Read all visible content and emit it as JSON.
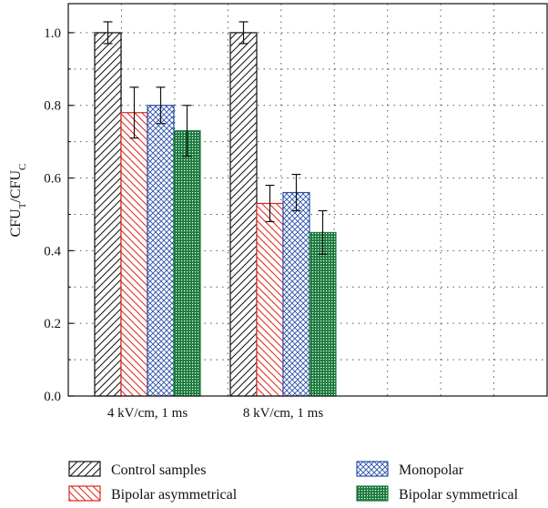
{
  "chart_data": {
    "type": "bar",
    "ylabel": "CFU_T/CFU_C",
    "ylabel_parts": {
      "main": "CFU",
      "sub1": "T",
      "sep": "/CFU",
      "sub2": "C"
    },
    "categories": [
      "4 kV/cm, 1 ms",
      "8 kV/cm, 1 ms"
    ],
    "ylim": [
      0,
      1.08
    ],
    "yticks": [
      "0.0",
      "0.2",
      "0.4",
      "0.6",
      "0.8",
      "1.0"
    ],
    "grid": true,
    "legend_position": "bottom",
    "series": [
      {
        "name": "Control samples",
        "values": [
          1.0,
          1.0
        ],
        "errors": [
          0.03,
          0.03
        ],
        "color": "#111111",
        "pattern": "diagonal-up"
      },
      {
        "name": "Bipolar asymmetrical",
        "values": [
          0.78,
          0.53
        ],
        "errors": [
          0.07,
          0.05
        ],
        "color": "#e2231a",
        "pattern": "diagonal-down"
      },
      {
        "name": "Monopolar",
        "values": [
          0.8,
          0.56
        ],
        "errors": [
          0.05,
          0.05
        ],
        "color": "#2b4fa8",
        "pattern": "crosshatch"
      },
      {
        "name": "Bipolar symmetrical",
        "values": [
          0.73,
          0.45
        ],
        "errors": [
          0.07,
          0.06
        ],
        "color": "#1a7a3c",
        "pattern": "dense-grid"
      }
    ]
  }
}
